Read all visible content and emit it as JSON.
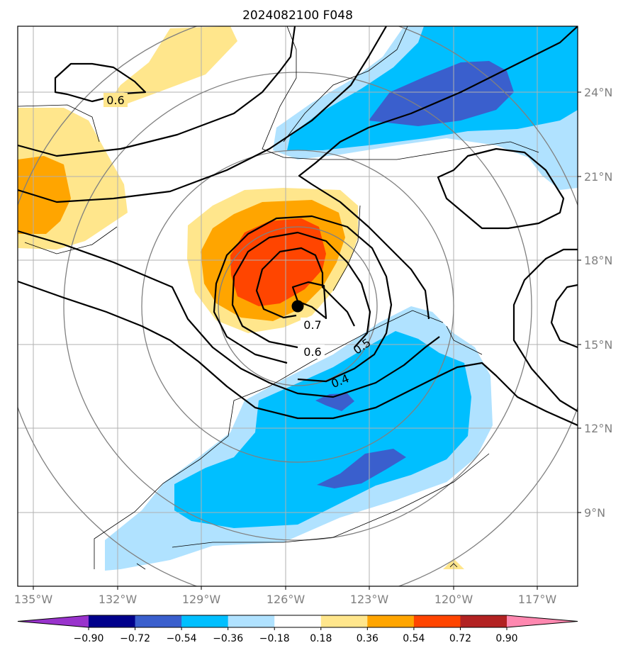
{
  "chart_data": {
    "type": "heatmap",
    "title": "2024082100 F048",
    "x_ticks": [
      "135°W",
      "132°W",
      "129°W",
      "126°W",
      "123°W",
      "120°W",
      "117°W"
    ],
    "y_ticks": [
      "24°N",
      "21°N",
      "18°N",
      "15°N",
      "12°N",
      "9°N"
    ],
    "lon_range": [
      -135.5,
      -115.5
    ],
    "lat_range": [
      6.5,
      26.5
    ],
    "grid": true,
    "colorbar": {
      "orientation": "horizontal",
      "levels": [
        "−0.90",
        "−0.72",
        "−0.54",
        "−0.36",
        "−0.18",
        "0.18",
        "0.36",
        "0.54",
        "0.72",
        "0.90"
      ],
      "colors": [
        "#9933cc",
        "#00008b",
        "#3a5fcd",
        "#00bfff",
        "#b0e2ff",
        "#ffffff",
        "#ffe68c",
        "#ffa500",
        "#ff4500",
        "#b22222",
        "#ff88b0"
      ]
    },
    "contour_labels": [
      "0.6",
      "0.7",
      "0.6",
      "0.5",
      "0.4"
    ],
    "center_marker": {
      "lon": -125.6,
      "lat": 16.4
    }
  }
}
